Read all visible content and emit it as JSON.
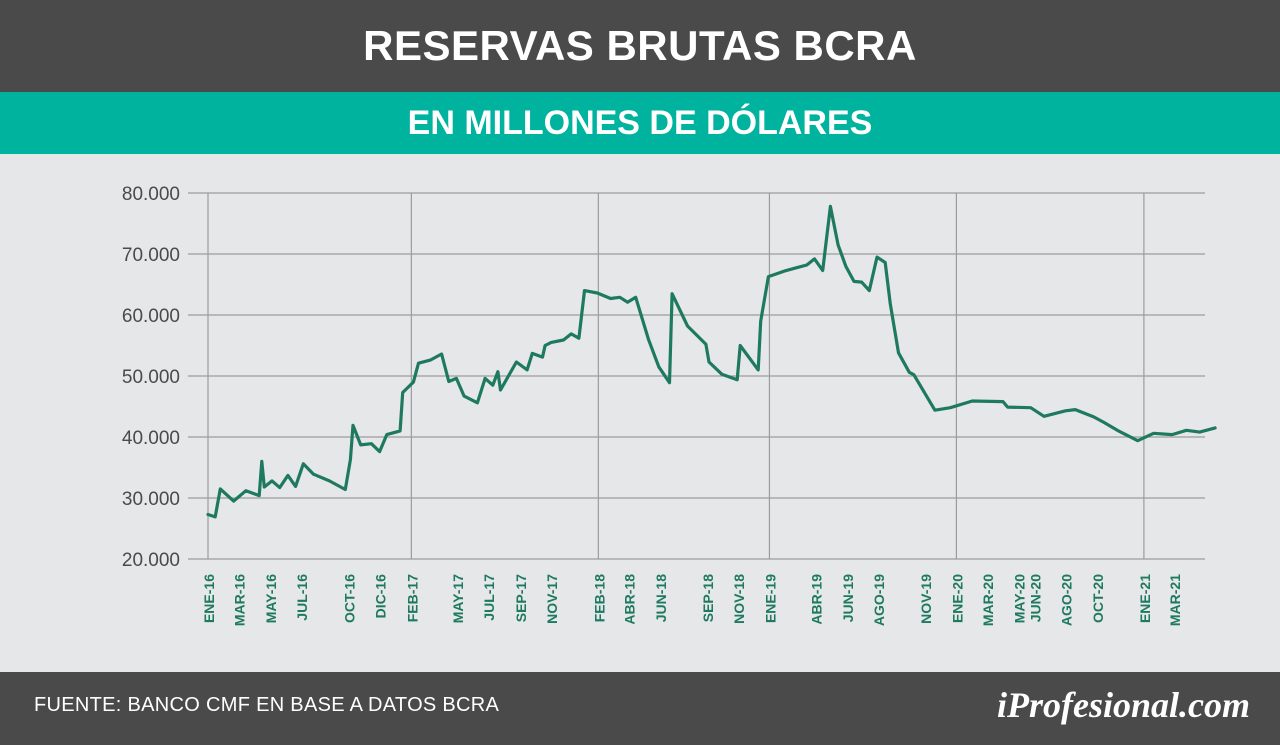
{
  "header": {
    "title": "RESERVAS BRUTAS BCRA",
    "subtitle": "EN MILLONES DE DÓLARES"
  },
  "footer": {
    "source": "FUENTE: BANCO CMF EN BASE A DATOS BCRA",
    "brand": "iProfesional.com"
  },
  "colors": {
    "line": "#1e7a5e",
    "tick_label": "#1e7a5e",
    "title_bg": "#4a4a4a",
    "subtitle_bg": "#00b39e",
    "chart_bg": "#e6e7e8",
    "grid": "#9c9c9c"
  },
  "chart_data": {
    "type": "line",
    "title": "RESERVAS BRUTAS BCRA",
    "subtitle": "EN MILLONES DE DÓLARES",
    "xlabel": "",
    "ylabel": "",
    "ylim": [
      20000,
      80000
    ],
    "y_ticks": [
      20000,
      30000,
      40000,
      50000,
      60000,
      70000,
      80000
    ],
    "y_tick_labels": [
      "20.000",
      "30.000",
      "40.000",
      "50.000",
      "60.000",
      "70.000",
      "80.000"
    ],
    "xlim": [
      "2016-01-01",
      "2021-04-01"
    ],
    "x_tick_labels": [
      {
        "date": "2016-01-01",
        "label": "ENE-16"
      },
      {
        "date": "2016-03-01",
        "label": "MAR-16"
      },
      {
        "date": "2016-05-01",
        "label": "MAY-16"
      },
      {
        "date": "2016-07-01",
        "label": "JUL-16"
      },
      {
        "date": "2016-10-01",
        "label": "OCT-16"
      },
      {
        "date": "2016-12-01",
        "label": "DIC-16"
      },
      {
        "date": "2017-02-01",
        "label": "FEB-17"
      },
      {
        "date": "2017-05-01",
        "label": "MAY-17"
      },
      {
        "date": "2017-07-01",
        "label": "JUL-17"
      },
      {
        "date": "2017-09-01",
        "label": "SEP-17"
      },
      {
        "date": "2017-11-01",
        "label": "NOV-17"
      },
      {
        "date": "2018-02-01",
        "label": "FEB-18"
      },
      {
        "date": "2018-04-01",
        "label": "ABR-18"
      },
      {
        "date": "2018-06-01",
        "label": "JUN-18"
      },
      {
        "date": "2018-09-01",
        "label": "SEP-18"
      },
      {
        "date": "2018-11-01",
        "label": "NOV-18"
      },
      {
        "date": "2019-01-01",
        "label": "ENE-19"
      },
      {
        "date": "2019-04-01",
        "label": "ABR-19"
      },
      {
        "date": "2019-06-01",
        "label": "JUN-19"
      },
      {
        "date": "2019-08-01",
        "label": "AGO-19"
      },
      {
        "date": "2019-11-01",
        "label": "NOV-19"
      },
      {
        "date": "2020-01-01",
        "label": "ENE-20"
      },
      {
        "date": "2020-03-01",
        "label": "MAR-20"
      },
      {
        "date": "2020-05-01",
        "label": "MAY-20"
      },
      {
        "date": "2020-06-01",
        "label": "JUN-20"
      },
      {
        "date": "2020-08-01",
        "label": "AGO-20"
      },
      {
        "date": "2020-10-01",
        "label": "OCT-20"
      },
      {
        "date": "2021-01-01",
        "label": "ENE-21"
      },
      {
        "date": "2021-03-01",
        "label": "MAR-21"
      }
    ],
    "x_gridlines": [
      "2016-01-01",
      "2017-02-01",
      "2018-02-01",
      "2019-01-01",
      "2020-01-01",
      "2021-01-01"
    ],
    "grid": true,
    "legend": "none",
    "series": [
      {
        "points": [
          [
            "2016-01-01",
            27300
          ],
          [
            "2016-01-15",
            26900
          ],
          [
            "2016-01-25",
            31500
          ],
          [
            "2016-02-20",
            29500
          ],
          [
            "2016-03-15",
            31200
          ],
          [
            "2016-04-10",
            30400
          ],
          [
            "2016-04-15",
            36000
          ],
          [
            "2016-04-20",
            31800
          ],
          [
            "2016-05-05",
            32800
          ],
          [
            "2016-05-20",
            31700
          ],
          [
            "2016-06-05",
            33700
          ],
          [
            "2016-06-20",
            31900
          ],
          [
            "2016-07-05",
            35600
          ],
          [
            "2016-07-25",
            33900
          ],
          [
            "2016-08-25",
            32800
          ],
          [
            "2016-09-25",
            31400
          ],
          [
            "2016-10-05",
            36300
          ],
          [
            "2016-10-10",
            41900
          ],
          [
            "2016-10-25",
            38700
          ],
          [
            "2016-11-15",
            38900
          ],
          [
            "2016-12-01",
            37600
          ],
          [
            "2016-12-15",
            40400
          ],
          [
            "2017-01-10",
            41000
          ],
          [
            "2017-01-15",
            47300
          ],
          [
            "2017-02-05",
            49000
          ],
          [
            "2017-02-15",
            52100
          ],
          [
            "2017-03-10",
            52600
          ],
          [
            "2017-04-01",
            53600
          ],
          [
            "2017-04-15",
            49100
          ],
          [
            "2017-04-30",
            49600
          ],
          [
            "2017-05-15",
            46700
          ],
          [
            "2017-06-10",
            45600
          ],
          [
            "2017-06-25",
            49600
          ],
          [
            "2017-07-10",
            48500
          ],
          [
            "2017-07-20",
            50700
          ],
          [
            "2017-07-25",
            47700
          ],
          [
            "2017-08-25",
            52300
          ],
          [
            "2017-09-15",
            51000
          ],
          [
            "2017-09-25",
            53700
          ],
          [
            "2017-10-15",
            53100
          ],
          [
            "2017-10-20",
            55000
          ],
          [
            "2017-11-01",
            55500
          ],
          [
            "2017-11-25",
            55900
          ],
          [
            "2017-12-10",
            56900
          ],
          [
            "2017-12-25",
            56200
          ],
          [
            "2018-01-05",
            64000
          ],
          [
            "2018-01-30",
            63600
          ],
          [
            "2018-02-25",
            62700
          ],
          [
            "2018-03-15",
            62900
          ],
          [
            "2018-03-30",
            62100
          ],
          [
            "2018-04-15",
            62900
          ],
          [
            "2018-05-10",
            56000
          ],
          [
            "2018-05-30",
            51500
          ],
          [
            "2018-06-20",
            48900
          ],
          [
            "2018-06-25",
            63500
          ],
          [
            "2018-07-25",
            58200
          ],
          [
            "2018-08-30",
            55200
          ],
          [
            "2018-09-05",
            52300
          ],
          [
            "2018-09-30",
            50300
          ],
          [
            "2018-10-30",
            49400
          ],
          [
            "2018-11-05",
            55000
          ],
          [
            "2018-12-10",
            51000
          ],
          [
            "2018-12-15",
            59000
          ],
          [
            "2018-12-30",
            66300
          ],
          [
            "2019-01-30",
            67200
          ],
          [
            "2019-02-25",
            67800
          ],
          [
            "2019-03-15",
            68200
          ],
          [
            "2019-03-30",
            69200
          ],
          [
            "2019-04-15",
            67300
          ],
          [
            "2019-04-30",
            77800
          ],
          [
            "2019-05-15",
            71500
          ],
          [
            "2019-05-30",
            68000
          ],
          [
            "2019-06-15",
            65500
          ],
          [
            "2019-06-30",
            65400
          ],
          [
            "2019-07-15",
            64000
          ],
          [
            "2019-07-30",
            69500
          ],
          [
            "2019-08-15",
            68600
          ],
          [
            "2019-08-25",
            61800
          ],
          [
            "2019-09-10",
            53800
          ],
          [
            "2019-10-01",
            50600
          ],
          [
            "2019-10-10",
            50200
          ],
          [
            "2019-11-20",
            44400
          ],
          [
            "2019-12-20",
            44800
          ],
          [
            "2020-02-01",
            45900
          ],
          [
            "2020-04-01",
            45800
          ],
          [
            "2020-04-10",
            44900
          ],
          [
            "2020-05-25",
            44800
          ],
          [
            "2020-06-20",
            43400
          ],
          [
            "2020-08-01",
            44300
          ],
          [
            "2020-08-20",
            44500
          ],
          [
            "2020-09-25",
            43300
          ],
          [
            "2020-10-15",
            42400
          ],
          [
            "2020-11-10",
            41100
          ],
          [
            "2020-12-20",
            39400
          ],
          [
            "2021-01-20",
            40600
          ],
          [
            "2021-02-25",
            40400
          ],
          [
            "2021-03-25",
            41100
          ],
          [
            "2021-04-20",
            40800
          ],
          [
            "2021-05-20",
            41500
          ]
        ]
      }
    ]
  }
}
